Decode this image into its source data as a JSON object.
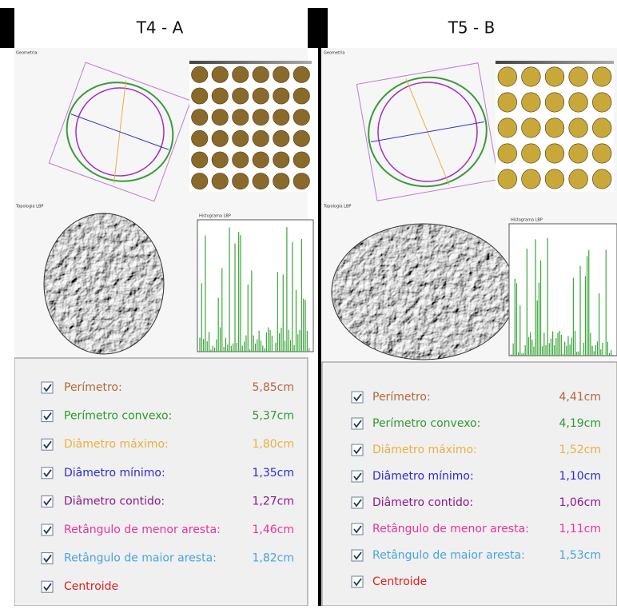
{
  "panels": [
    {
      "title": "T4 - A",
      "geometry_label": "Geometria",
      "topology_label": "Topologia LBP",
      "histogram_label": "Histograma LBP",
      "measures": [
        {
          "label": "Perímetro:",
          "value": "5,85cm"
        },
        {
          "label": "Perímetro convexo:",
          "value": "5,37cm"
        },
        {
          "label": "Diâmetro máximo:",
          "value": "1,80cm"
        },
        {
          "label": "Diâmetro mínimo:",
          "value": "1,35cm"
        },
        {
          "label": "Diâmetro contido:",
          "value": "1,27cm"
        },
        {
          "label": "Retângulo de menor aresta:",
          "value": "1,46cm"
        },
        {
          "label": "Retângulo de maior aresta:",
          "value": "1,82cm"
        },
        {
          "label": "Centroide"
        }
      ]
    },
    {
      "title": "T5 - B",
      "geometry_label": "Geometria",
      "topology_label": "Topologia LBP",
      "histogram_label": "Histograma LBP",
      "measures": [
        {
          "label": "Perímetro:",
          "value": "4,41cm"
        },
        {
          "label": "Perímetro convexo:",
          "value": "4,19cm"
        },
        {
          "label": "Diâmetro máximo:",
          "value": "1,52cm"
        },
        {
          "label": "Diâmetro mínimo:",
          "value": "1,10cm"
        },
        {
          "label": "Diâmetro contido:",
          "value": "1,06cm"
        },
        {
          "label": "Retângulo de menor aresta:",
          "value": "1,11cm"
        },
        {
          "label": "Retângulo de maior aresta:",
          "value": "1,53cm"
        },
        {
          "label": "Centroide"
        }
      ]
    }
  ]
}
